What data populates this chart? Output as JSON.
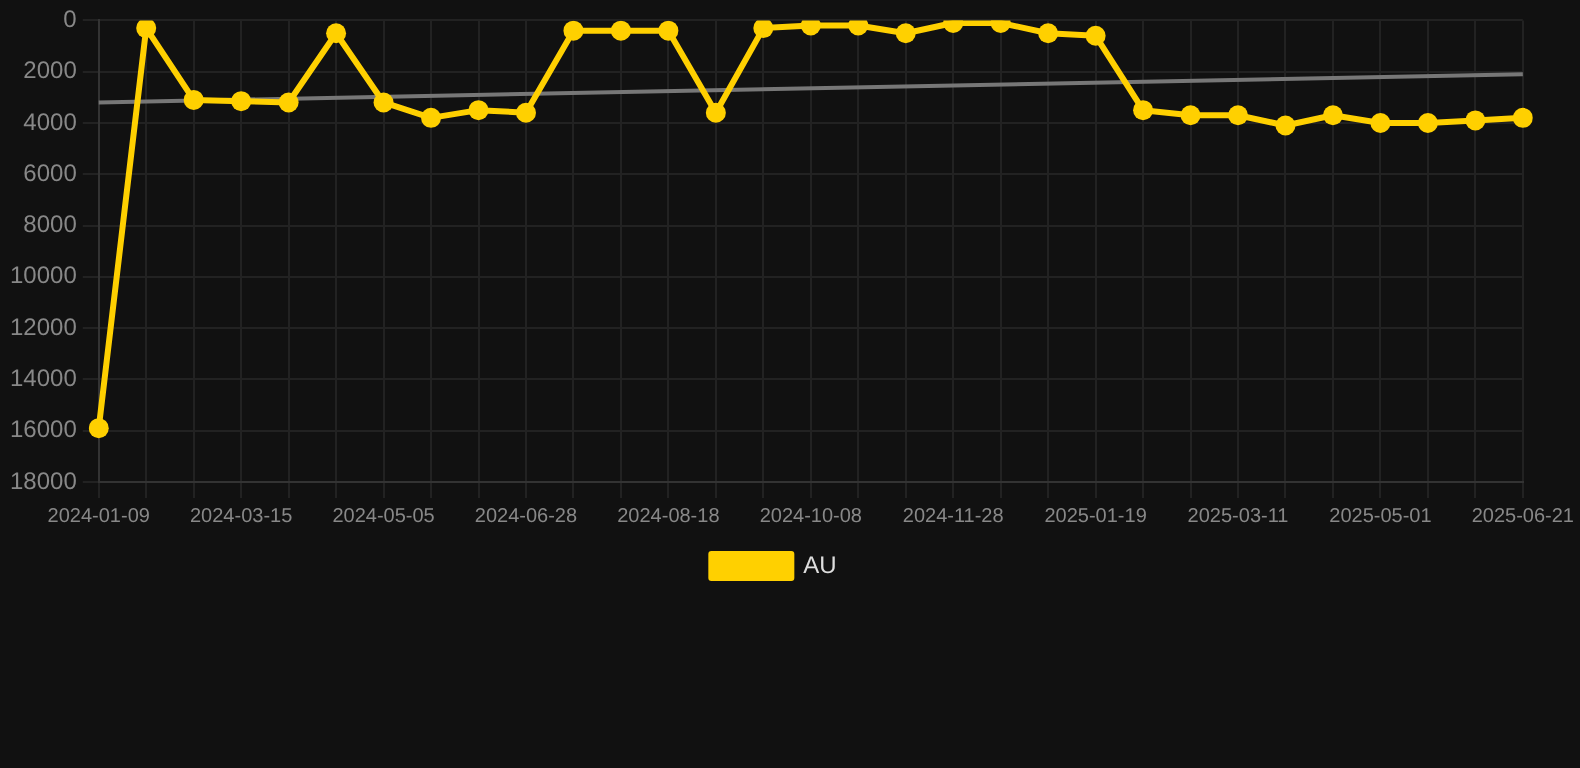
{
  "chart_data": {
    "type": "line",
    "categories": [
      "2024-01-09",
      null,
      null,
      "2024-03-15",
      null,
      null,
      "2024-05-05",
      null,
      null,
      "2024-06-28",
      null,
      null,
      "2024-08-18",
      null,
      null,
      "2024-10-08",
      null,
      null,
      "2024-11-28",
      null,
      null,
      "2025-01-19",
      null,
      null,
      "2025-03-11",
      null,
      null,
      "2025-05-01",
      null,
      null,
      "2025-06-21"
    ],
    "series": [
      {
        "name": "AU",
        "color": "#ffd000",
        "marker": "circle",
        "values": [
          15900,
          300,
          3100,
          3150,
          3200,
          500,
          3200,
          3800,
          3500,
          3600,
          400,
          400,
          400,
          3600,
          300,
          200,
          200,
          500,
          100,
          100,
          500,
          600,
          3500,
          3700,
          3700,
          4100,
          3700,
          4000,
          4000,
          3900,
          3800
        ]
      },
      {
        "type": "line",
        "color": "#777777",
        "marker": "none",
        "values": [
          3200,
          null,
          null,
          null,
          null,
          null,
          null,
          null,
          null,
          null,
          null,
          null,
          null,
          null,
          null,
          null,
          null,
          null,
          null,
          null,
          null,
          null,
          null,
          null,
          null,
          null,
          null,
          null,
          null,
          null,
          2100
        ]
      }
    ],
    "ylim": [
      18000,
      0
    ],
    "yticks": [
      0,
      2000,
      4000,
      6000,
      8000,
      10000,
      12000,
      14000,
      16000,
      18000
    ],
    "grid": true,
    "legend": "bottom"
  }
}
